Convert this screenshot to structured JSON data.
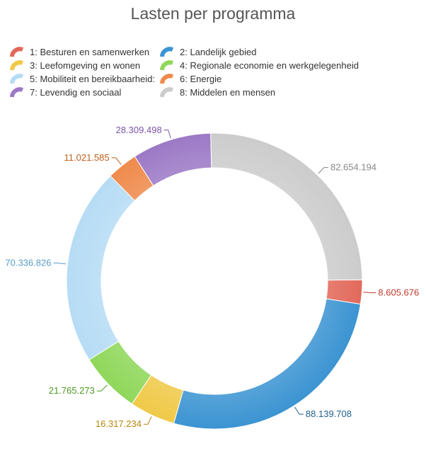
{
  "chart_data": {
    "type": "pie",
    "title": "Lasten per programma",
    "donut": true,
    "legend_position": "top",
    "slices": [
      {
        "name": "1: Besturen en samenwerken",
        "value": 8605676,
        "label": "8.605.676",
        "color": "#e2695a",
        "label_color": "#c0392b"
      },
      {
        "name": "2: Landelijk gebied",
        "value": 88139708,
        "label": "88.139.708",
        "color": "#3b94d2",
        "label_color": "#1f5f8b"
      },
      {
        "name": "3: Leefomgeving en wonen",
        "value": 16317234,
        "label": "16.317.234",
        "color": "#f0c948",
        "label_color": "#b8860b"
      },
      {
        "name": "4: Regionale economie en werkgelegenheid",
        "value": 21765273,
        "label": "21.765.273",
        "color": "#8fd75a",
        "label_color": "#4a9a1f"
      },
      {
        "name": "5: Mobiliteit en bereikbaarheid:",
        "value": 70336826,
        "label": "70.336.826",
        "color": "#b6dcf5",
        "label_color": "#5a9cc9"
      },
      {
        "name": "6: Energie",
        "value": 11021585,
        "label": "11.021.585",
        "color": "#ef8a4c",
        "label_color": "#c0601a"
      },
      {
        "name": "7: Levendig en sociaal",
        "value": 28309498,
        "label": "28.309.498",
        "color": "#9c79c6",
        "label_color": "#7a55a8"
      },
      {
        "name": "8: Middelen en mensen",
        "value": 82654194,
        "label": "82.654.194",
        "color": "#cccccc",
        "label_color": "#888888"
      }
    ]
  }
}
